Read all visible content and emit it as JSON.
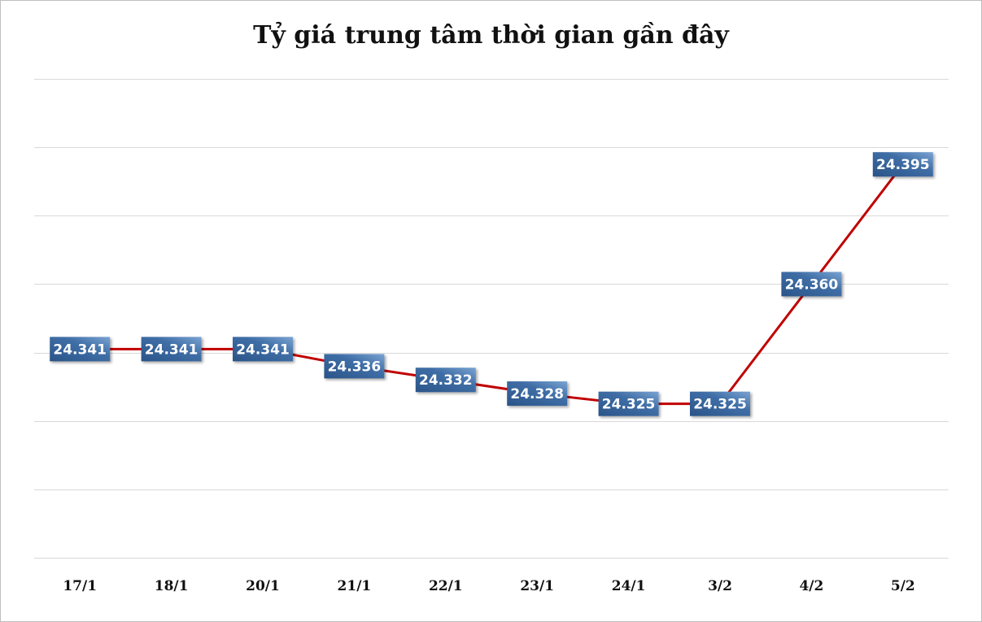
{
  "chart_data": {
    "type": "line",
    "title": "Tỷ giá trung tâm thời gian gần đây",
    "xlabel": "",
    "ylabel": "",
    "categories": [
      "17/1",
      "18/1",
      "20/1",
      "21/1",
      "22/1",
      "23/1",
      "24/1",
      "3/2",
      "4/2",
      "5/2"
    ],
    "series": [
      {
        "values": [
          24.341,
          24.341,
          24.341,
          24.336,
          24.332,
          24.328,
          24.325,
          24.325,
          24.36,
          24.395
        ],
        "labels": [
          "24.341",
          "24.341",
          "24.341",
          "24.336",
          "24.332",
          "24.328",
          "24.325",
          "24.325",
          "24.360",
          "24.395"
        ],
        "color": "#c00000"
      }
    ],
    "ylim": [
      24.28,
      24.42
    ],
    "ytick_step": 0.02,
    "y_axis_labels_shown": false,
    "grid": true,
    "legend": "none",
    "label_box_color": "#3a679d"
  }
}
